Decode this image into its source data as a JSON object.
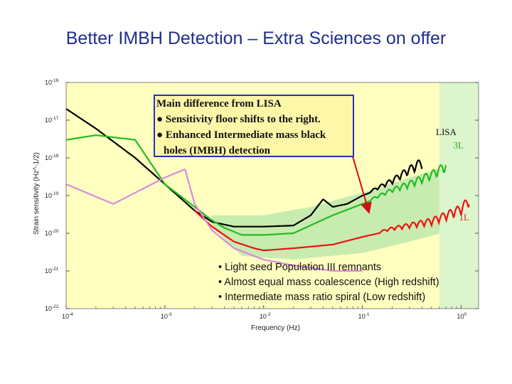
{
  "slide": {
    "title": "Better IMBH Detection – Extra Sciences on offer"
  },
  "callout": {
    "heading": "Main difference from LISA",
    "bullets": [
      "Sensitivity floor shifts to the right.",
      "Enhanced Intermediate mass black",
      "holes (IMBH) detection"
    ]
  },
  "sciences": [
    "• Light seed Population III remnants",
    "• Almost equal mass coalescence (High redshift)",
    "• Intermediate mass ratio spiral (Low redshift)"
  ],
  "colors": {
    "lisa": "#000000",
    "three_l": "#22bb22",
    "one_l": "#ee1111",
    "pink": "#dd88dd",
    "yellow_region": "#ffffc0",
    "green_region": "#c8ecb0",
    "callout_border": "#2233bb"
  },
  "chart_data": {
    "type": "line",
    "xlabel": "Frequency (Hz)",
    "ylabel": "Strain sensitivity (Hz^-1/2)",
    "x_scale": "log",
    "y_scale": "log",
    "xlim": [
      0.0001,
      1.5
    ],
    "ylim": [
      1e-22,
      1e-16
    ],
    "x_ticks": [
      {
        "value": 0.0001,
        "base": "10",
        "exp": "-4"
      },
      {
        "value": 0.001,
        "base": "10",
        "exp": "-3"
      },
      {
        "value": 0.01,
        "base": "10",
        "exp": "-2"
      },
      {
        "value": 0.1,
        "base": "10",
        "exp": "-1"
      },
      {
        "value": 1,
        "base": "10",
        "exp": "0"
      }
    ],
    "y_ticks": [
      {
        "value": 1e-16,
        "base": "10",
        "exp": "-16"
      },
      {
        "value": 1e-17,
        "base": "10",
        "exp": "-17"
      },
      {
        "value": 1e-18,
        "base": "10",
        "exp": "-18"
      },
      {
        "value": 1e-19,
        "base": "10",
        "exp": "-19"
      },
      {
        "value": 1e-20,
        "base": "10",
        "exp": "-20"
      },
      {
        "value": 1e-21,
        "base": "10",
        "exp": "-21"
      },
      {
        "value": 1e-22,
        "base": "10",
        "exp": "-22"
      }
    ],
    "regions": [
      {
        "name": "yellow",
        "fill": "#ffffc0",
        "x_range": [
          0.0001,
          1.5
        ],
        "y_range": [
          1e-22,
          1e-16
        ]
      },
      {
        "name": "green-band",
        "fill": "#c8ecb0",
        "upper": [
          [
            0.003,
            3e-20
          ],
          [
            0.01,
            3e-20
          ],
          [
            0.03,
            5e-20
          ],
          [
            0.1,
            1.2e-19
          ],
          [
            0.3,
            3e-19
          ],
          [
            1,
            8e-19
          ],
          [
            1.5,
            1.2e-18
          ]
        ],
        "lower": [
          [
            0.003,
            1.5e-20
          ],
          [
            0.006,
            2.5e-21
          ],
          [
            0.02,
            2e-21
          ],
          [
            0.1,
            3e-21
          ],
          [
            0.3,
            6e-21
          ],
          [
            1,
            1.4e-20
          ],
          [
            1.5,
            2e-20
          ]
        ]
      },
      {
        "name": "green-right",
        "fill": "#dcf5cc",
        "x_range": [
          0.6,
          1.5
        ],
        "y_range": [
          1e-22,
          1e-16
        ]
      }
    ],
    "series": [
      {
        "name": "LISA",
        "color": "#000000",
        "wiggle_from": 0.12,
        "x": [
          0.0001,
          0.0002,
          0.0005,
          0.001,
          0.002,
          0.003,
          0.005,
          0.01,
          0.02,
          0.03,
          0.04,
          0.05,
          0.07,
          0.1,
          0.15,
          0.2,
          0.3,
          0.4
        ],
        "y": [
          2e-17,
          6e-18,
          1e-18,
          2e-19,
          4e-20,
          2e-20,
          1.5e-20,
          1.5e-20,
          1.6e-20,
          3e-20,
          8e-20,
          5e-20,
          6e-20,
          1e-19,
          1.5e-19,
          2e-19,
          3.5e-19,
          5e-19
        ]
      },
      {
        "name": "3L",
        "color": "#22bb22",
        "wiggle_from": 0.12,
        "x": [
          0.0001,
          0.0002,
          0.0005,
          0.001,
          0.002,
          0.003,
          0.004,
          0.006,
          0.01,
          0.02,
          0.05,
          0.1,
          0.2,
          0.3,
          0.5,
          0.7
        ],
        "y": [
          3e-18,
          4e-18,
          3e-18,
          2e-19,
          5e-20,
          2.2e-20,
          1.4e-20,
          9e-21,
          9e-21,
          1e-20,
          3e-20,
          6e-20,
          1.2e-19,
          1.6e-19,
          2.5e-19,
          4e-19
        ]
      },
      {
        "name": "1L",
        "color": "#ee1111",
        "wiggle_from": 0.15,
        "x": [
          0.002,
          0.003,
          0.005,
          0.008,
          0.01,
          0.02,
          0.05,
          0.1,
          0.2,
          0.5,
          1,
          1.2
        ],
        "y": [
          4e-20,
          1.5e-20,
          6e-21,
          4e-21,
          3.5e-21,
          4e-21,
          5e-21,
          8e-21,
          1.2e-20,
          1.6e-20,
          3e-20,
          5e-20
        ]
      },
      {
        "name": "",
        "color": "#dd88dd",
        "x": [
          0.0001,
          0.0003,
          0.001,
          0.0016,
          0.002,
          0.003,
          0.005,
          0.01,
          0.02,
          0.05,
          0.1
        ],
        "y": [
          2e-19,
          6e-20,
          3e-19,
          5e-19,
          6e-20,
          1.2e-20,
          4e-21,
          2e-21,
          1.4e-21,
          1e-21,
          1e-21
        ]
      }
    ],
    "labels": [
      {
        "text": "LISA",
        "color": "#111111",
        "x": 0.7,
        "y": 4e-18
      },
      {
        "text": "3L",
        "color": "#22aa22",
        "x": 1.05,
        "y": 1.8e-18
      },
      {
        "text": "1L",
        "color": "#dd2222",
        "x": 1.2,
        "y": 2.2e-20
      }
    ]
  }
}
